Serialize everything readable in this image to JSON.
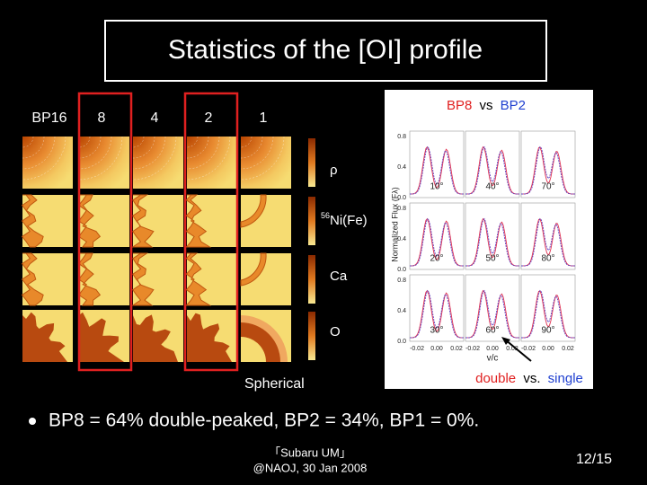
{
  "title": "Statistics of the [OI] profile",
  "columns": [
    "BP16",
    "8",
    "4",
    "2",
    "1"
  ],
  "rows": [
    {
      "label": "ρ"
    },
    {
      "sup": "56",
      "label": "Ni(Fe)"
    },
    {
      "label": "Ca"
    },
    {
      "label": "O"
    }
  ],
  "spherical": "Spherical",
  "panel": {
    "title": [
      "BP8",
      "vs",
      "BP2"
    ],
    "y_label": "Normalized Flux (Fλ)",
    "x_label": "v/c",
    "y_ticks": [
      "0.8",
      "0.4",
      "0.0"
    ],
    "x_ticks": [
      "-0.02",
      "0.00",
      "0.02"
    ],
    "angles": [
      "10°",
      "40°",
      "70°",
      "20°",
      "50°",
      "80°",
      "30°",
      "60°",
      "90°"
    ],
    "caption": [
      "double",
      "vs.",
      "single"
    ]
  },
  "bullet": "BP8 = 64% double-peaked, BP2 = 34%, BP1 = 0%.",
  "footer": {
    "event": "「Subaru UM」",
    "credit": "@NAOJ, 30 Jan 2008",
    "page": "12/15"
  }
}
